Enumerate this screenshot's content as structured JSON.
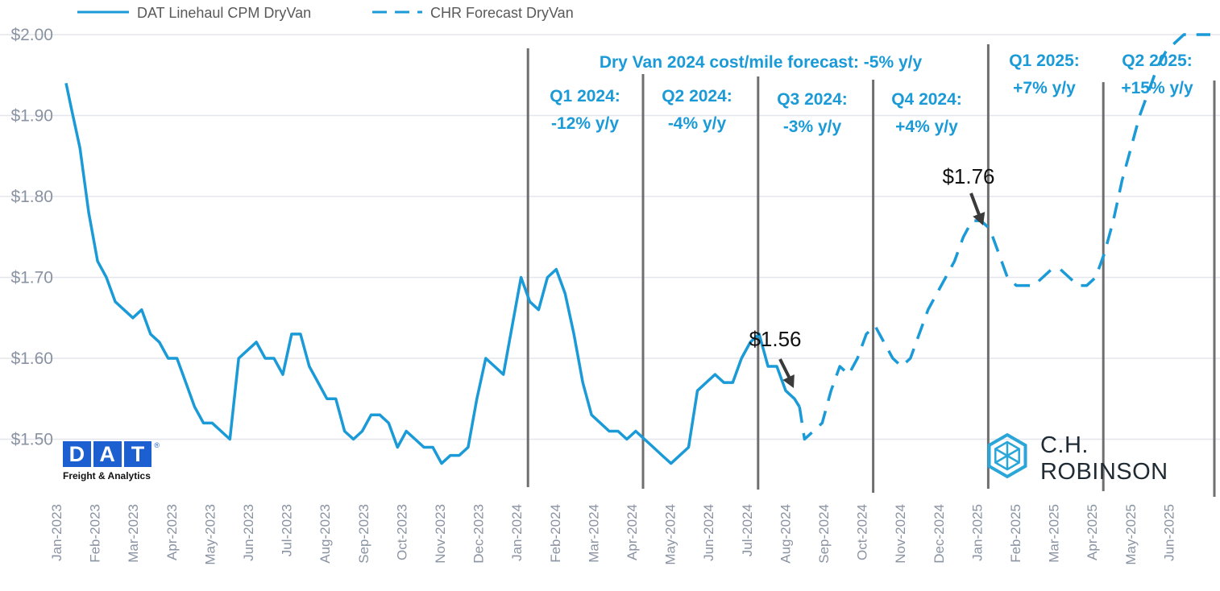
{
  "legend": {
    "actual_label": "DAT Linehaul CPM DryVan",
    "forecast_label": "CHR Forecast DryVan"
  },
  "headline": "Dry Van 2024 cost/mile forecast: -5% y/y",
  "quarters": [
    {
      "label": "Q1 2024:",
      "change": "-12% y/y"
    },
    {
      "label": "Q2 2024:",
      "change": "-4% y/y"
    },
    {
      "label": "Q3 2024:",
      "change": "-3% y/y"
    },
    {
      "label": "Q4 2024:",
      "change": "+4% y/y"
    },
    {
      "label": "Q1 2025:",
      "change": "+7% y/y"
    },
    {
      "label": "Q2 2025:",
      "change": "+15% y/y"
    }
  ],
  "callouts": [
    {
      "text": "$1.56",
      "x": "2024-08",
      "y": 1.56
    },
    {
      "text": "$1.76",
      "x": "2025-01",
      "y": 1.765
    }
  ],
  "logos": {
    "dat_letters": [
      "D",
      "A",
      "T"
    ],
    "dat_tagline": "Freight & Analytics",
    "dat_registered": "®",
    "chr_name": "C.H. ROBINSON"
  },
  "colors": {
    "series": "#1a9ad6",
    "grid": "#e3e6ec",
    "divider": "#6f6f6f",
    "axis_text": "#8a93a2",
    "dat_blue": "#1b5fd1",
    "chr_teal": "#2aa6d8"
  },
  "chart_data": {
    "type": "line",
    "ylim": [
      1.45,
      2.0
    ],
    "y_ticks": [
      1.5,
      1.6,
      1.7,
      1.8,
      1.9,
      2.0
    ],
    "y_tick_labels": [
      "$1.50",
      "$1.60",
      "$1.70",
      "$1.80",
      "$1.90",
      "$2.00"
    ],
    "x_tick_labels": [
      "Jan-2023",
      "Feb-2023",
      "Mar-2023",
      "Apr-2023",
      "May-2023",
      "Jun-2023",
      "Jul-2023",
      "Aug-2023",
      "Sep-2023",
      "Oct-2023",
      "Nov-2023",
      "Dec-2023",
      "Jan-2024",
      "Feb-2024",
      "Mar-2024",
      "Apr-2024",
      "May-2024",
      "Jun-2024",
      "Jul-2024",
      "Aug-2024",
      "Sep-2024",
      "Oct-2024",
      "Nov-2024",
      "Dec-2024",
      "Jan-2025",
      "Feb-2025",
      "Mar-2025",
      "Apr-2025",
      "May-2025",
      "Jun-2025"
    ],
    "grid": true,
    "legend_position": "top-left",
    "series": [
      {
        "name": "DAT Linehaul CPM DryVan",
        "style": "solid",
        "x": [
          "2023-01-01",
          "2023-01-05",
          "2023-01-12",
          "2023-01-19",
          "2023-01-26",
          "2023-02-02",
          "2023-02-09",
          "2023-02-16",
          "2023-02-23",
          "2023-03-02",
          "2023-03-09",
          "2023-03-16",
          "2023-03-23",
          "2023-03-30",
          "2023-04-06",
          "2023-04-13",
          "2023-04-20",
          "2023-04-27",
          "2023-05-04",
          "2023-05-11",
          "2023-05-18",
          "2023-05-25",
          "2023-06-01",
          "2023-06-08",
          "2023-06-15",
          "2023-06-22",
          "2023-06-29",
          "2023-07-06",
          "2023-07-13",
          "2023-07-20",
          "2023-07-27",
          "2023-08-03",
          "2023-08-10",
          "2023-08-17",
          "2023-08-24",
          "2023-08-31",
          "2023-09-07",
          "2023-09-14",
          "2023-09-21",
          "2023-09-28",
          "2023-10-05",
          "2023-10-12",
          "2023-10-19",
          "2023-10-26",
          "2023-11-02",
          "2023-11-09",
          "2023-11-16",
          "2023-11-23",
          "2023-11-30",
          "2023-12-07",
          "2023-12-14",
          "2023-12-21",
          "2023-12-28",
          "2024-01-04",
          "2024-01-11",
          "2024-01-18",
          "2024-01-25",
          "2024-02-01",
          "2024-02-08",
          "2024-02-15",
          "2024-02-22",
          "2024-02-29",
          "2024-03-07",
          "2024-03-14",
          "2024-03-21",
          "2024-03-28",
          "2024-04-04",
          "2024-04-11",
          "2024-04-18",
          "2024-04-25",
          "2024-05-02",
          "2024-05-09",
          "2024-05-16",
          "2024-05-23",
          "2024-05-30",
          "2024-06-06",
          "2024-06-13",
          "2024-06-20",
          "2024-06-27",
          "2024-07-04",
          "2024-07-11",
          "2024-07-18",
          "2024-07-25",
          "2024-08-01",
          "2024-08-05"
        ],
        "y": [
          1.94,
          1.91,
          1.86,
          1.78,
          1.72,
          1.7,
          1.67,
          1.66,
          1.65,
          1.66,
          1.63,
          1.62,
          1.6,
          1.6,
          1.57,
          1.54,
          1.52,
          1.52,
          1.51,
          1.5,
          1.6,
          1.61,
          1.62,
          1.6,
          1.6,
          1.58,
          1.63,
          1.63,
          1.59,
          1.57,
          1.55,
          1.55,
          1.51,
          1.5,
          1.51,
          1.53,
          1.53,
          1.52,
          1.49,
          1.51,
          1.5,
          1.49,
          1.49,
          1.47,
          1.48,
          1.48,
          1.49,
          1.55,
          1.6,
          1.59,
          1.58,
          1.64,
          1.7,
          1.67,
          1.66,
          1.7,
          1.71,
          1.68,
          1.63,
          1.57,
          1.53,
          1.52,
          1.51,
          1.51,
          1.5,
          1.51,
          1.5,
          1.49,
          1.48,
          1.47,
          1.48,
          1.49,
          1.56,
          1.57,
          1.58,
          1.57,
          1.57,
          1.6,
          1.62,
          1.63,
          1.59,
          1.59,
          1.56,
          1.55,
          1.54
        ]
      },
      {
        "name": "CHR Forecast DryVan",
        "style": "dashed",
        "x": [
          "2024-08-05",
          "2024-08-09",
          "2024-08-16",
          "2024-08-23",
          "2024-08-30",
          "2024-09-06",
          "2024-09-13",
          "2024-09-20",
          "2024-09-27",
          "2024-10-04",
          "2024-10-11",
          "2024-10-18",
          "2024-10-25",
          "2024-11-01",
          "2024-11-08",
          "2024-11-15",
          "2024-11-22",
          "2024-11-29",
          "2024-12-06",
          "2024-12-13",
          "2024-12-20",
          "2024-12-27",
          "2025-01-03",
          "2025-01-10",
          "2025-01-17",
          "2025-01-24",
          "2025-01-31",
          "2025-02-07",
          "2025-02-14",
          "2025-02-21",
          "2025-02-28",
          "2025-03-07",
          "2025-03-14",
          "2025-03-21",
          "2025-03-28",
          "2025-04-04",
          "2025-04-11",
          "2025-04-18",
          "2025-04-25",
          "2025-05-02",
          "2025-05-09",
          "2025-05-16",
          "2025-05-23",
          "2025-05-30",
          "2025-06-06",
          "2025-06-13",
          "2025-06-20",
          "2025-06-27"
        ],
        "y": [
          1.54,
          1.5,
          1.51,
          1.52,
          1.56,
          1.59,
          1.58,
          1.6,
          1.63,
          1.64,
          1.62,
          1.6,
          1.59,
          1.6,
          1.63,
          1.66,
          1.68,
          1.7,
          1.72,
          1.75,
          1.77,
          1.77,
          1.76,
          1.73,
          1.7,
          1.69,
          1.69,
          1.69,
          1.7,
          1.71,
          1.71,
          1.7,
          1.69,
          1.69,
          1.7,
          1.73,
          1.77,
          1.82,
          1.86,
          1.9,
          1.93,
          1.96,
          1.98,
          1.99,
          2.0,
          2.0,
          2.0,
          2.0
        ]
      }
    ]
  }
}
